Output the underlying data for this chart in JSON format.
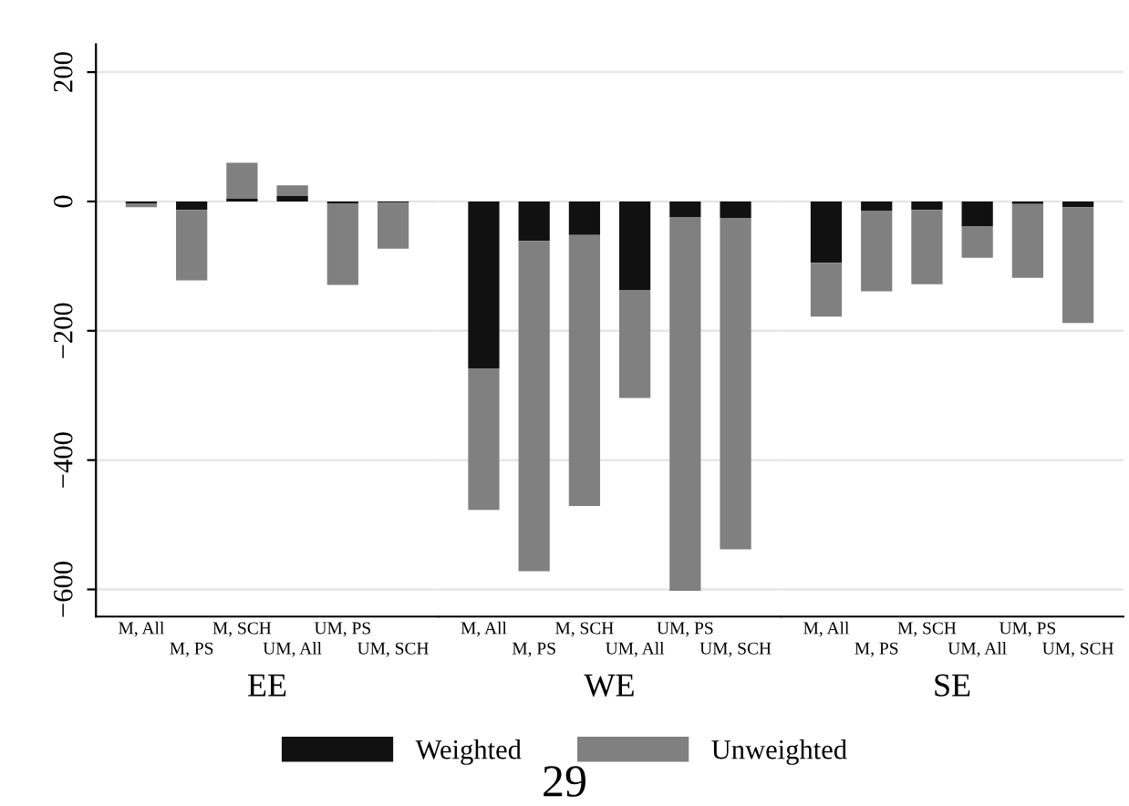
{
  "chart_data": [
    {
      "type": "bar",
      "stacked": true,
      "xlabel": "EE",
      "categories": [
        "M, All",
        "M, PS",
        "M, SCH",
        "UM, All",
        "UM, PS",
        "UM, SCH"
      ],
      "series": [
        {
          "name": "Weighted",
          "color": "#111111",
          "values": [
            -3,
            -13,
            4,
            9,
            -3,
            -2
          ]
        },
        {
          "name": "Unweighted",
          "color": "#808080",
          "values": [
            -6,
            -109,
            56,
            16,
            -126,
            -71
          ]
        }
      ],
      "ylim": [
        -642,
        243
      ],
      "yticks": [
        {
          "value": -600,
          "label": "−600"
        },
        {
          "value": -400,
          "label": "−400"
        },
        {
          "value": -200,
          "label": "−200"
        },
        0,
        200
      ],
      "grid": "y",
      "legend": "bottom",
      "annotations": [
        "29"
      ]
    },
    {
      "type": "bar",
      "stacked": true,
      "xlabel": "WE",
      "categories": [
        "M, All",
        "M, PS",
        "M, SCH",
        "UM, All",
        "UM, PS",
        "UM, SCH"
      ],
      "series": [
        {
          "color": "#111111",
          "values": [
            -258,
            -61,
            -52,
            -137,
            -24,
            -26
          ]
        },
        {
          "color": "#808080",
          "values": [
            -219,
            -511,
            -419,
            -167,
            -578,
            -512
          ]
        }
      ],
      "ylim": [
        -642,
        243
      ],
      "grid": "y",
      "tick_labels": "x"
    },
    {
      "type": "bar",
      "stacked": true,
      "xlabel": "SE",
      "categories": [
        "M, All",
        "M, PS",
        "M, SCH",
        "UM, All",
        "UM, PS",
        "UM, SCH"
      ],
      "series": [
        {
          "color": "#111111",
          "values": [
            -95,
            -14,
            -13,
            -39,
            -4,
            -9
          ]
        },
        {
          "color": "#808080",
          "values": [
            -83,
            -125,
            -115,
            -48,
            -114,
            -179
          ]
        }
      ],
      "ylim": [
        -642,
        243
      ],
      "grid": "y",
      "tick_labels": "x"
    }
  ]
}
